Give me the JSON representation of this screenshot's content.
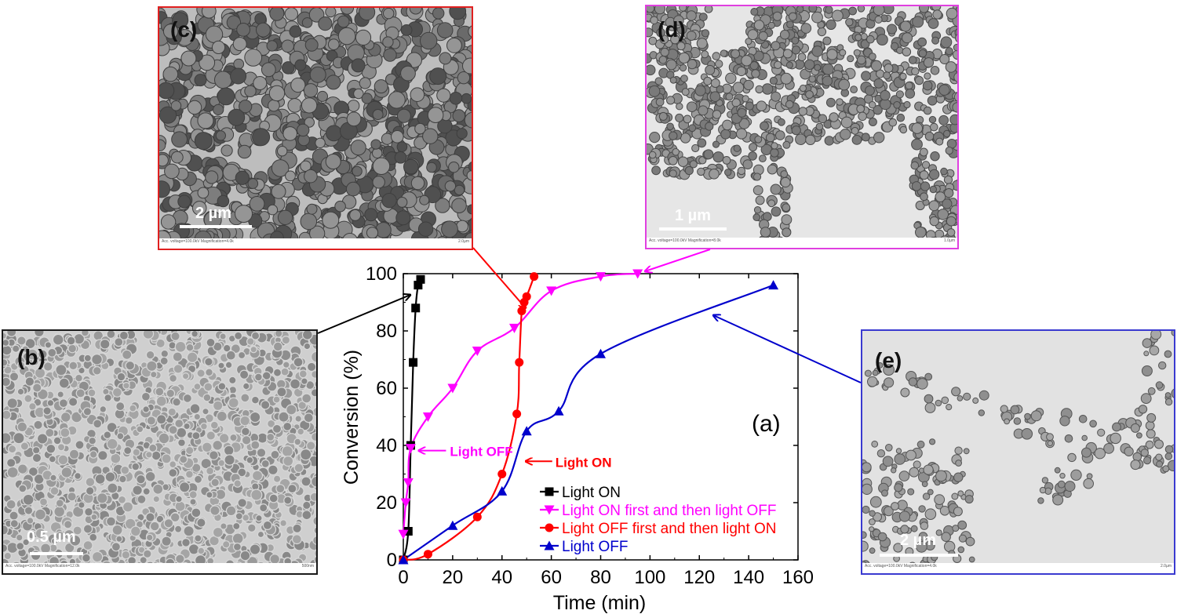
{
  "panels": {
    "b": {
      "label": "(b)",
      "scale": "0.5 µm",
      "border": "#1a1a1a",
      "tiny_left": "Acc. voltage=100.0kV Magnification=12.0k",
      "tiny_right": "500nm"
    },
    "c": {
      "label": "(c)",
      "scale": "2 µm",
      "border": "#e02020",
      "tiny_left": "Acc. voltage=100.0kV Magnification=4.0k",
      "tiny_right": "2.0µm"
    },
    "d": {
      "label": "(d)",
      "scale": "1 µm",
      "border": "#e040e0",
      "tiny_left": "Acc. voltage=100.0kV Magnification=8.0k",
      "tiny_right": "1.0µm"
    },
    "e": {
      "label": "(e)",
      "scale": "2 µm",
      "border": "#3a3ad0",
      "tiny_left": "Acc. voltage=100.0kV Magnification=4.0k",
      "tiny_right": "2.0µm"
    }
  },
  "chart_data": {
    "type": "line",
    "panel_label": "(a)",
    "xlabel": "Time (min)",
    "ylabel": "Conversion (%)",
    "xlim": [
      0,
      160
    ],
    "ylim": [
      0,
      100
    ],
    "xticks": [
      0,
      20,
      40,
      60,
      80,
      100,
      120,
      140,
      160
    ],
    "yticks": [
      0,
      20,
      40,
      60,
      80,
      100
    ],
    "grid": false,
    "legend_position": "bottom-right",
    "series": [
      {
        "name": "Light ON",
        "color": "#000000",
        "marker": "square",
        "x": [
          0,
          2,
          3,
          4,
          5,
          6,
          7
        ],
        "y": [
          0,
          10,
          40,
          69,
          88,
          96,
          98
        ]
      },
      {
        "name": "Light ON first and then light OFF",
        "color": "#ff00ff",
        "marker": "triangle-down",
        "x": [
          0,
          1,
          2,
          3,
          10,
          20,
          30,
          45,
          60,
          80,
          95
        ],
        "y": [
          9,
          20,
          27,
          39,
          50,
          60,
          73,
          81,
          94,
          99,
          100
        ]
      },
      {
        "name": "Light OFF first and then light ON",
        "color": "#ff0000",
        "marker": "circle",
        "x": [
          0,
          10,
          30,
          40,
          46,
          47,
          48,
          49,
          50,
          53
        ],
        "y": [
          0,
          2,
          15,
          30,
          51,
          69,
          87,
          90,
          92,
          99
        ]
      },
      {
        "name": "Light OFF",
        "color": "#0000cc",
        "marker": "triangle-up",
        "x": [
          0,
          20,
          40,
          50,
          63,
          80,
          150
        ],
        "y": [
          0,
          12,
          24,
          45,
          52,
          72,
          96
        ]
      }
    ],
    "annotations": [
      {
        "text": "Light OFF",
        "color": "#ff00ff",
        "at": [
          3,
          39
        ]
      },
      {
        "text": "Light ON",
        "color": "#ff0000",
        "at": [
          47,
          35
        ]
      }
    ]
  }
}
